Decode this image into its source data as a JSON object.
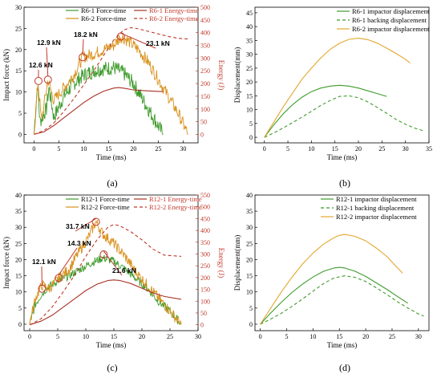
{
  "chart_data": [
    {
      "id": "a",
      "type": "line",
      "panel_label": "(a)",
      "xlabel": "Time (ms)",
      "ylabel": "Impact force (kN)",
      "y2label": "Energy (J)",
      "xlim": [
        -2,
        33
      ],
      "xticks": [
        0,
        5,
        10,
        15,
        20,
        25,
        30
      ],
      "ylim": [
        -2,
        30
      ],
      "yticks": [
        0,
        5,
        10,
        15,
        20,
        25,
        30
      ],
      "y2lim": [
        -33.3,
        500
      ],
      "y2ticks": [
        0,
        50,
        100,
        150,
        200,
        250,
        300,
        350,
        400,
        450,
        500
      ],
      "grid": false,
      "legend": [
        "R6-1 Force-time",
        "R6-2 Force-time",
        "R6-1 Energy-time",
        "R6-2 Energy-time"
      ],
      "series": [
        {
          "name": "R6-1 Force-time",
          "axis": "left",
          "color": "#3f9b2c",
          "dash": "",
          "noise": 1.8,
          "x": [
            0,
            0.7,
            1.2,
            2.5,
            3.0,
            4,
            6,
            8,
            10,
            12,
            14,
            16,
            18,
            20,
            22,
            24,
            26
          ],
          "y": [
            0,
            12.0,
            3,
            6,
            11,
            4,
            9,
            12,
            14,
            15,
            15.5,
            15.8,
            14.5,
            12,
            8,
            4,
            0
          ]
        },
        {
          "name": "R6-2 Force-time",
          "axis": "left",
          "color": "#d9901a",
          "dash": "",
          "noise": 1.5,
          "x": [
            0,
            0.8,
            1.5,
            2.8,
            4,
            6,
            8,
            9.8,
            12,
            14,
            16,
            17.5,
            19,
            21,
            23,
            25,
            27,
            29,
            31
          ],
          "y": [
            0,
            12.6,
            3,
            12.9,
            8,
            11,
            14,
            18.2,
            19,
            20,
            21,
            23.1,
            22,
            20,
            17,
            13,
            9,
            5,
            0
          ]
        },
        {
          "name": "R6-1 Energy-time",
          "axis": "right",
          "color": "#a93226",
          "dash": "",
          "noise": 0,
          "x": [
            0,
            2,
            4,
            6,
            8,
            10,
            12,
            14,
            16,
            17,
            18,
            20,
            22,
            24,
            26
          ],
          "y": [
            0,
            10,
            35,
            65,
            95,
            125,
            150,
            170,
            182,
            184,
            182,
            175,
            172,
            170,
            168
          ]
        },
        {
          "name": "R6-2 Energy-time",
          "axis": "right",
          "color": "#c0392b",
          "dash": "4,3",
          "noise": 0,
          "x": [
            0,
            2,
            4,
            6,
            8,
            10,
            12,
            14,
            16,
            18,
            19.5,
            21,
            24,
            27,
            29,
            31
          ],
          "y": [
            0,
            15,
            45,
            90,
            140,
            195,
            250,
            310,
            370,
            410,
            420,
            415,
            400,
            385,
            378,
            375
          ]
        }
      ],
      "annotations": [
        "12.6 kN",
        "12.9 kN",
        "18.2 kN",
        "23.1 kN"
      ]
    },
    {
      "id": "b",
      "type": "line",
      "panel_label": "(b)",
      "xlabel": "Time (ms)",
      "ylabel": "Displacement(mm)",
      "xlim": [
        -2,
        35
      ],
      "xticks": [
        0,
        5,
        10,
        15,
        20,
        25,
        30,
        35
      ],
      "ylim": [
        -2,
        47
      ],
      "yticks": [
        0,
        5,
        10,
        15,
        20,
        25,
        30,
        35,
        40,
        45
      ],
      "grid": false,
      "legend": [
        "R6-1 impactor displacement",
        "R6-1 backing displacement",
        "R6-2 impactor displacement"
      ],
      "series": [
        {
          "name": "R6-1 impactor displacement",
          "color": "#3f9b2c",
          "dash": "",
          "x": [
            0,
            2,
            4,
            6,
            8,
            10,
            12,
            14,
            16,
            18,
            20,
            22,
            24,
            26
          ],
          "y": [
            0,
            4.5,
            8.5,
            11.8,
            14.5,
            16.5,
            17.8,
            18.5,
            18.8,
            18.5,
            17.8,
            16.8,
            15.8,
            14.8
          ]
        },
        {
          "name": "R6-1 backing displacement",
          "color": "#3f9b2c",
          "dash": "4,3",
          "x": [
            0,
            2,
            4,
            6,
            8,
            10,
            12,
            14,
            16,
            18,
            20,
            22,
            24,
            26,
            28,
            30,
            32,
            34
          ],
          "y": [
            0,
            1.6,
            3.4,
            5.3,
            7.3,
            9.4,
            11.5,
            13.3,
            14.8,
            15.0,
            14.3,
            12.8,
            10.8,
            8.7,
            6.5,
            4.7,
            3.3,
            2.3
          ]
        },
        {
          "name": "R6-2 impactor displacement",
          "color": "#e3a72f",
          "dash": "",
          "x": [
            0,
            2,
            4,
            6,
            8,
            10,
            12,
            14,
            16,
            18,
            20,
            22,
            24,
            26,
            28,
            30,
            31
          ],
          "y": [
            0,
            5.5,
            11,
            16,
            21,
            25,
            28.7,
            31.8,
            34,
            35.4,
            35.8,
            35.3,
            34.0,
            32.2,
            30.3,
            28.2,
            26.8
          ]
        }
      ]
    },
    {
      "id": "c",
      "type": "line",
      "panel_label": "(c)",
      "xlabel": "Time (ms)",
      "ylabel": "Impact force (kN)",
      "y2label": "Energy (J)",
      "xlim": [
        -1,
        30
      ],
      "xticks": [
        0,
        5,
        10,
        15,
        20,
        25,
        30
      ],
      "ylim": [
        -2,
        40
      ],
      "yticks": [
        0,
        5,
        10,
        15,
        20,
        25,
        30,
        35,
        40
      ],
      "y2lim": [
        -25,
        550
      ],
      "y2ticks": [
        0,
        50,
        100,
        150,
        200,
        250,
        300,
        350,
        400,
        450,
        500,
        550
      ],
      "grid": false,
      "legend": [
        "R12-1 Force-time",
        "R12-2 Force-time",
        "R12-1 Energy-time",
        "R12-2 Energy-time"
      ],
      "series": [
        {
          "name": "R12-1 Force-time",
          "axis": "left",
          "color": "#3f9b2c",
          "dash": "",
          "noise": 1.3,
          "x": [
            0,
            1,
            2,
            3,
            5,
            7,
            9,
            11,
            13,
            15,
            17,
            19,
            21,
            23,
            25,
            27
          ],
          "y": [
            0,
            6,
            9,
            11,
            13.5,
            15,
            17,
            19,
            20.5,
            19.5,
            17,
            14,
            11,
            7,
            4,
            0
          ]
        },
        {
          "name": "R12-2 Force-time",
          "axis": "left",
          "color": "#d9901a",
          "dash": "",
          "noise": 1.7,
          "x": [
            0,
            1,
            2.2,
            3.5,
            5.2,
            7,
            9,
            10.5,
            11.8,
            13,
            15,
            17,
            19,
            21,
            23,
            25,
            27
          ],
          "y": [
            0,
            8,
            12.1,
            11,
            14.3,
            17,
            23,
            27,
            31.7,
            28,
            25,
            21,
            16,
            12,
            8,
            4,
            0
          ]
        },
        {
          "name": "R12-1 Energy-time",
          "axis": "right",
          "color": "#a93226",
          "dash": "",
          "noise": 0,
          "x": [
            0,
            2,
            4,
            6,
            8,
            10,
            12,
            14,
            15,
            16,
            18,
            20,
            22,
            24,
            27
          ],
          "y": [
            0,
            15,
            40,
            75,
            110,
            145,
            172,
            188,
            190,
            188,
            175,
            155,
            135,
            120,
            108
          ]
        },
        {
          "name": "R12-2 Energy-time",
          "axis": "right",
          "color": "#c0392b",
          "dash": "4,3",
          "noise": 0,
          "x": [
            0,
            2,
            4,
            6,
            8,
            10,
            12,
            14,
            15,
            16,
            18,
            20,
            22,
            24,
            27
          ],
          "y": [
            0,
            25,
            75,
            140,
            210,
            290,
            360,
            415,
            425,
            420,
            395,
            360,
            320,
            295,
            290
          ]
        }
      ],
      "annotations": [
        "12.1 kN",
        "14.3 kN",
        "31.7 kN",
        "21.6 kN"
      ]
    },
    {
      "id": "d",
      "type": "line",
      "panel_label": "(d)",
      "xlabel": "Time (ms)",
      "ylabel": "Displacement(mm)",
      "xlim": [
        -1,
        32
      ],
      "xticks": [
        0,
        5,
        10,
        15,
        20,
        25,
        30
      ],
      "ylim": [
        -2,
        40
      ],
      "yticks": [
        0,
        5,
        10,
        15,
        20,
        25,
        30,
        35,
        40
      ],
      "grid": false,
      "legend": [
        "R12-1 impactor displacement",
        "R12-1 backing displacement",
        "R12-2 impactor displacement"
      ],
      "series": [
        {
          "name": "R12-1 impactor displacement",
          "color": "#3f9b2c",
          "dash": "",
          "x": [
            0,
            2,
            4,
            6,
            8,
            10,
            12,
            14,
            15,
            16,
            18,
            20,
            22,
            24,
            26,
            28
          ],
          "y": [
            0,
            3.5,
            6.8,
            9.8,
            12.4,
            14.6,
            16.4,
            17.4,
            17.6,
            17.4,
            16.4,
            14.8,
            12.8,
            10.8,
            8.6,
            6.5
          ]
        },
        {
          "name": "R12-1 backing displacement",
          "color": "#3f9b2c",
          "dash": "4,3",
          "x": [
            0,
            2,
            4,
            6,
            8,
            10,
            12,
            14,
            16,
            18,
            20,
            22,
            24,
            26,
            28,
            30,
            31
          ],
          "y": [
            0,
            1.6,
            3.4,
            5.5,
            7.8,
            10.2,
            12.6,
            14.3,
            15.0,
            14.5,
            13.2,
            11.3,
            9.2,
            7.0,
            5.0,
            3.2,
            2.5
          ]
        },
        {
          "name": "R12-2 impactor displacement",
          "color": "#e3a72f",
          "dash": "",
          "x": [
            0,
            2,
            4,
            6,
            8,
            10,
            12,
            14,
            15,
            16,
            18,
            20,
            22,
            24,
            26,
            27
          ],
          "y": [
            0,
            5,
            10,
            14.5,
            18.6,
            22,
            24.8,
            26.8,
            27.5,
            27.8,
            27.2,
            25.8,
            23.6,
            21.0,
            17.5,
            15.8
          ]
        }
      ]
    }
  ]
}
